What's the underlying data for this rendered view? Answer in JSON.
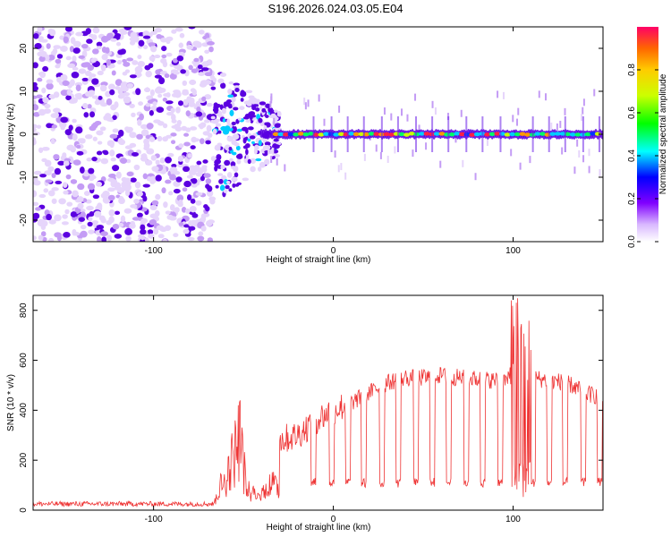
{
  "title": "S196.2026.024.03.05.E04",
  "chart_data": [
    {
      "type": "heatmap",
      "name": "spectrogram",
      "xlabel": "Height of straight line (km)",
      "ylabel": "Frequency (Hz)",
      "xlim": [
        -167,
        150
      ],
      "ylim": [
        -25,
        25
      ],
      "xticks": [
        -100,
        0,
        100
      ],
      "yticks": [
        -20,
        -10,
        0,
        10,
        20
      ],
      "colorbar": {
        "label": "Normalized spectral amplitude",
        "range": [
          0,
          1
        ],
        "ticks": [
          0.0,
          0.2,
          0.4,
          0.6,
          0.8
        ]
      },
      "signal_band_hz": 0,
      "noise_region_end_km": -67,
      "signal_onset_km": -40
    },
    {
      "type": "line",
      "name": "snr",
      "xlabel": "Height of straight line (km)",
      "ylabel": "SNR (10 * v/v)",
      "xlim": [
        -167,
        150
      ],
      "ylim": [
        0,
        860
      ],
      "xticks": [
        -100,
        0,
        100
      ],
      "yticks": [
        0,
        200,
        400,
        600,
        800
      ],
      "color": "#ee3333",
      "segments": [
        {
          "x": [
            -167,
            -66
          ],
          "snr": [
            25,
            25
          ]
        },
        {
          "x": [
            -66,
            -58,
            -52,
            -48,
            -40,
            -36,
            -30
          ],
          "snr": [
            30,
            160,
            340,
            60,
            40,
            110,
            90
          ]
        },
        {
          "x": [
            -30,
            -20,
            -10,
            0,
            10,
            20,
            30,
            40,
            50,
            60,
            70,
            80,
            90,
            100,
            110,
            120,
            130,
            140,
            150
          ],
          "snr": [
            280,
            300,
            360,
            400,
            430,
            470,
            510,
            530,
            530,
            540,
            530,
            525,
            520,
            520,
            530,
            520,
            510,
            470,
            450
          ]
        }
      ],
      "dropouts_km": [
        -11,
        -1,
        8,
        17,
        27,
        36,
        46,
        55,
        64,
        74,
        83,
        93,
        111,
        120,
        129,
        139,
        148
      ],
      "dropout_snr": 110,
      "spike_x": 104,
      "spike_snr": 860
    }
  ]
}
